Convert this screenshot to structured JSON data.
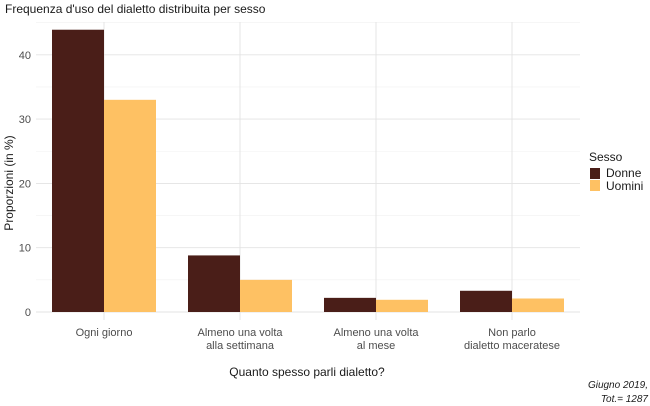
{
  "chart_data": {
    "type": "bar",
    "title": "Frequenza d'uso del dialetto distribuita per sesso",
    "xlabel": "Quanto spesso parli dialetto?",
    "ylabel": "Proporzioni (in %)",
    "ylim": [
      0,
      45
    ],
    "yticks": [
      0,
      10,
      20,
      30,
      40
    ],
    "grid": true,
    "legend_position": "right",
    "legend_title": "Sesso",
    "categories": [
      [
        "Ogni giorno"
      ],
      [
        "Almeno una volta",
        "alla settimana"
      ],
      [
        "Almeno una volta",
        "al mese"
      ],
      [
        "Non parlo",
        "dialetto maceratese"
      ]
    ],
    "series": [
      {
        "name": "Donne",
        "color": "#4a1e18",
        "values": [
          43.9,
          8.8,
          2.2,
          3.3
        ]
      },
      {
        "name": "Uomini",
        "color": "#fec163",
        "values": [
          33.0,
          5.0,
          1.9,
          2.1
        ]
      }
    ],
    "caption": [
      "Giugno 2019,",
      "Tot.= 1287"
    ]
  }
}
